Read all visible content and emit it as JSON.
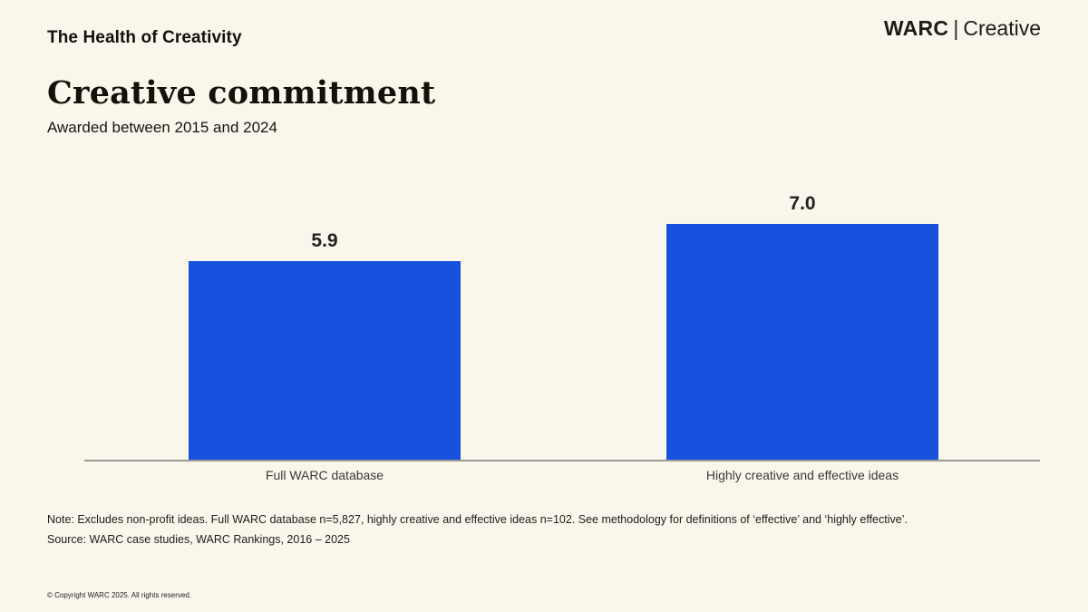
{
  "page": {
    "kicker": "The Health of Creativity",
    "logo": {
      "brand": "WARC",
      "separator": "|",
      "suffix": "Creative"
    },
    "title": "Creative commitment",
    "subtitle": "Awarded between 2015 and 2024",
    "note": "Note: Excludes non-profit ideas. Full WARC database n=5,827, highly creative and effective ideas n=102.  See methodology for definitions of ‘effective’ and ‘highly effective’.",
    "source": "Source: WARC case studies, WARC Rankings, 2016 – 2025",
    "copyright": "© Copyright WARC 2025. All rights reserved.",
    "colors": {
      "background": "#faf6ec",
      "bar": "#1652dd",
      "axis": "#9c9a93",
      "text": "#1b1b16"
    }
  },
  "chart_data": {
    "type": "bar",
    "categories": [
      "Full WARC database",
      "Highly creative and effective ideas"
    ],
    "values": [
      5.9,
      7.0
    ],
    "data_labels": [
      "5.9",
      "7.0"
    ],
    "title": "Creative commitment",
    "subtitle": "Awarded between 2015 and 2024",
    "xlabel": "",
    "ylabel": "",
    "ylim": [
      0,
      8
    ],
    "grid": false,
    "legend": false,
    "bar_color": "#1652dd"
  }
}
